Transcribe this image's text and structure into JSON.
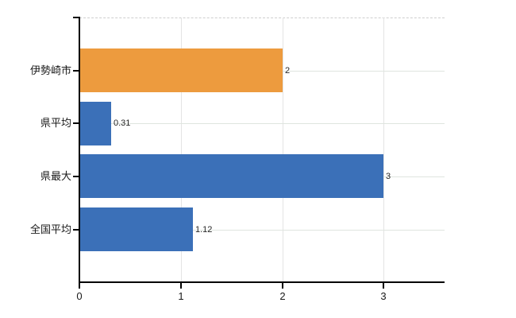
{
  "chart_data": {
    "type": "bar",
    "orientation": "horizontal",
    "title": "",
    "xlabel": "",
    "ylabel": "",
    "categories": [
      "伊勢崎市",
      "県平均",
      "県最大",
      "全国平均"
    ],
    "values": [
      2,
      0.31,
      3,
      1.12
    ],
    "value_labels": [
      "2",
      "0.31",
      "3",
      "1.12"
    ],
    "bar_colors": [
      "#ED9B3E",
      "#3B70B8",
      "#3B70B8",
      "#3B70B8"
    ],
    "x_tick_values": [
      0,
      1,
      2,
      3
    ],
    "x_tick_labels": [
      "0",
      "1",
      "2",
      "3"
    ],
    "xlim": [
      0,
      3.6
    ],
    "grid": true,
    "legend_position": "none"
  },
  "colors": {
    "background": "#ffffff",
    "axis": "#000000",
    "grid_vertical": "#e4e4e4",
    "grid_horizontal": "#dfe5df",
    "plot_top_border": "#cfcfcf",
    "category_text": "#1a1a1a",
    "tick_text": "#1a1a1a",
    "value_text": "#262626",
    "highlight_bar": "#ED9B3E",
    "default_bar": "#3B70B8"
  }
}
